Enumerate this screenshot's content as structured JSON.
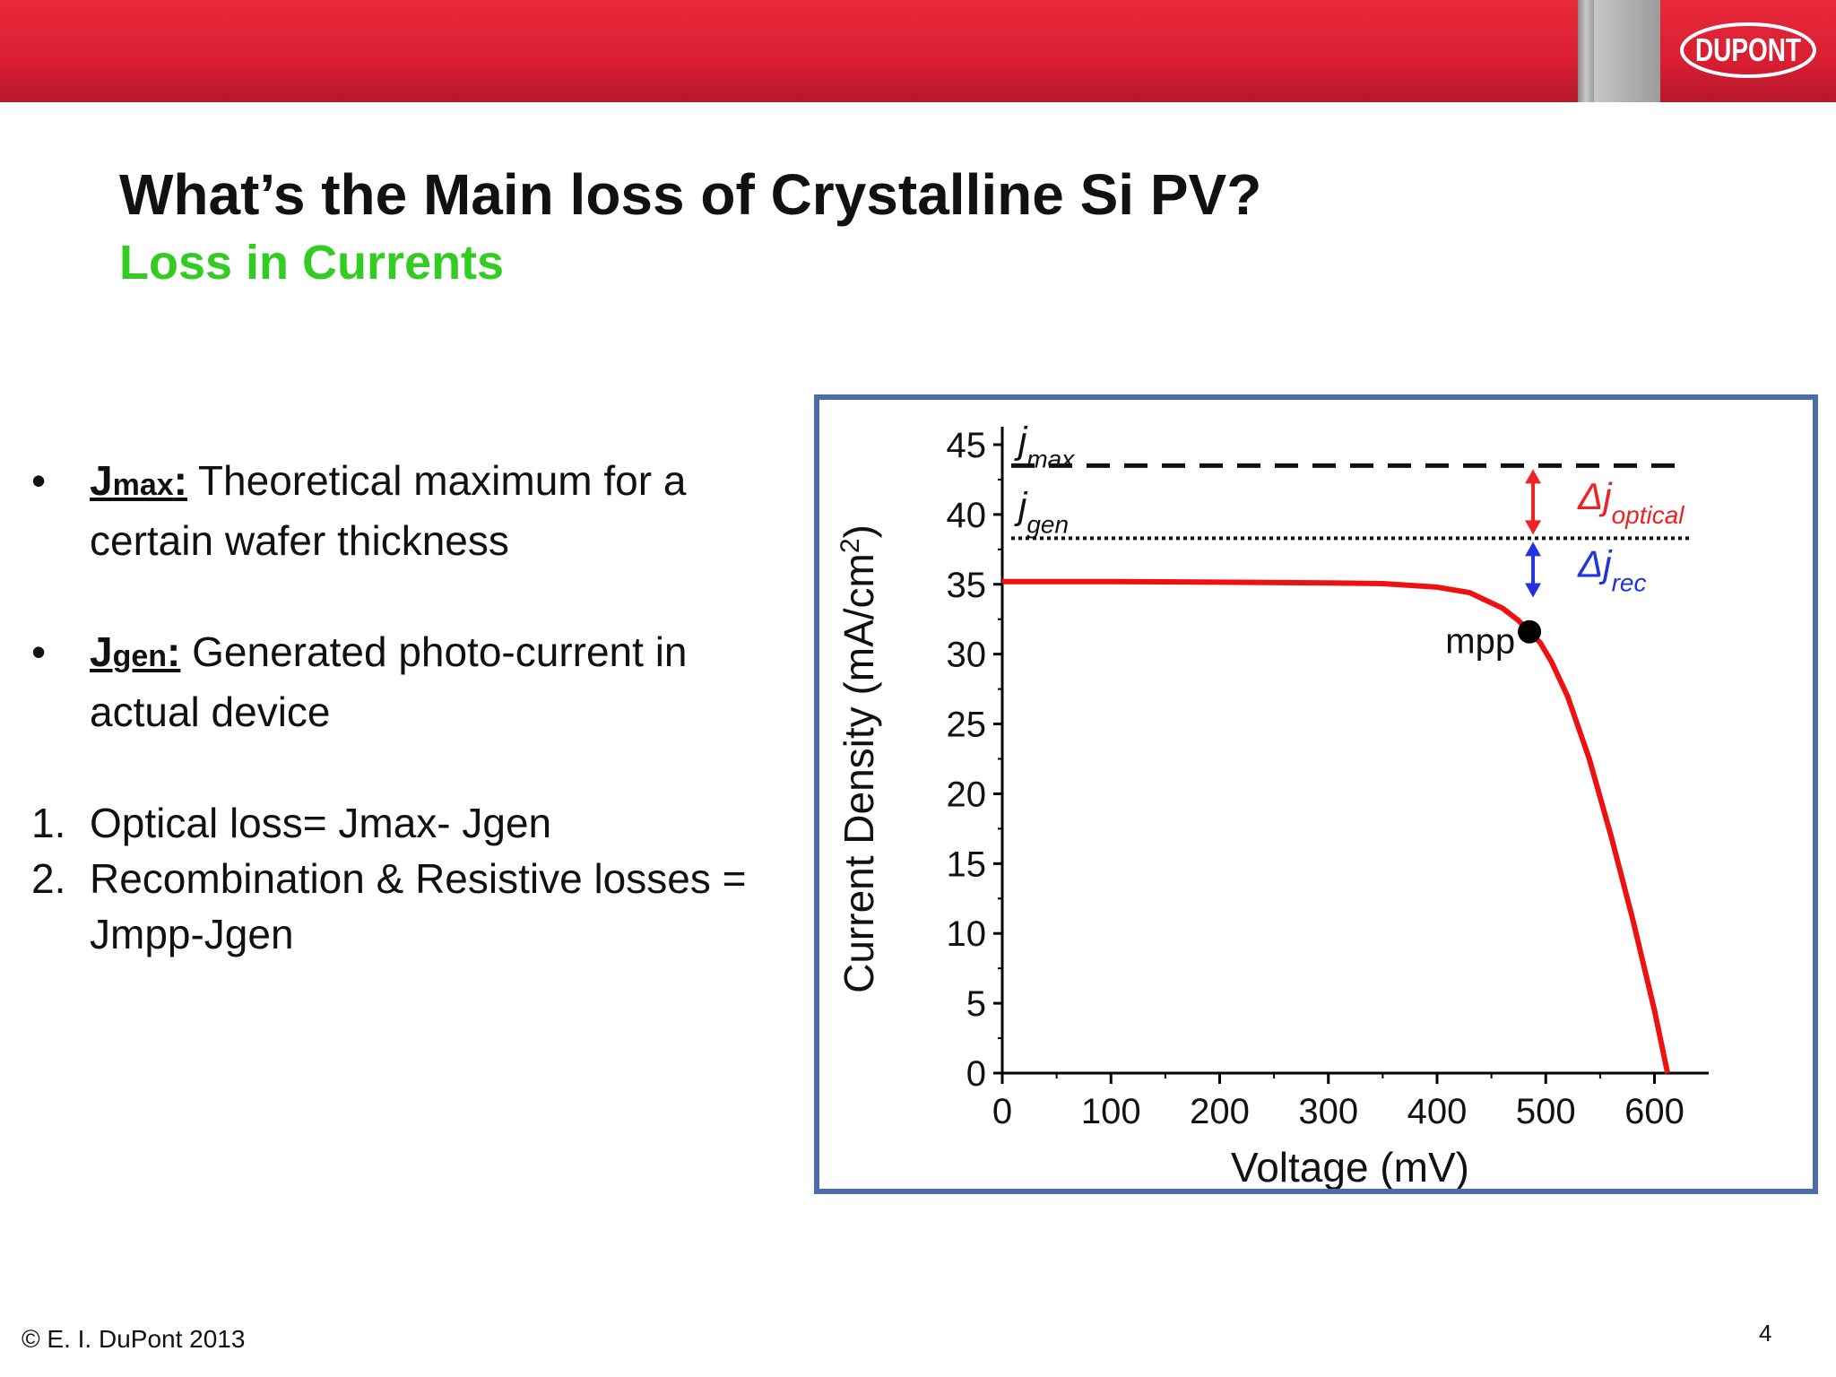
{
  "header": {
    "logo_text": "DUPONT",
    "colors": {
      "banner": "#d91e32",
      "logo_stroke": "#ffffff"
    }
  },
  "title": "What’s the Main loss of Crystalline Si PV?",
  "subtitle": "Loss in Currents",
  "bullets": [
    {
      "marker": "•",
      "term": "J",
      "term_sub": "max",
      "colon": ":",
      "text": " Theoretical maximum for a certain wafer thickness"
    },
    {
      "marker": "•",
      "term": "J",
      "term_sub": "gen",
      "colon": ":",
      "text": " Generated photo-current in actual device"
    }
  ],
  "numbered": [
    {
      "marker": "1.",
      "text": "Optical loss= Jmax- Jgen"
    },
    {
      "marker": "2.",
      "text": "Recombination & Resistive losses = Jmpp-Jgen"
    }
  ],
  "footer": {
    "copyright": "©  E. I. DuPont 2013",
    "page": "4"
  },
  "chart_data": {
    "type": "line",
    "xlabel": "Voltage (mV)",
    "ylabel": "Current Density (mA/cm",
    "ylabel_sup": "2",
    "ylabel_close": ")",
    "xlim": [
      0,
      640
    ],
    "ylim": [
      0,
      45
    ],
    "xticks": [
      0,
      100,
      200,
      300,
      400,
      500,
      600
    ],
    "yticks": [
      0,
      5,
      10,
      15,
      20,
      25,
      30,
      35,
      40,
      45
    ],
    "series": [
      {
        "color": "#ee1111",
        "x": [
          0,
          100,
          200,
          300,
          350,
          400,
          430,
          460,
          475,
          485,
          495,
          505,
          520,
          540,
          560,
          580,
          600,
          612
        ],
        "y": [
          35.2,
          35.2,
          35.15,
          35.1,
          35.05,
          34.8,
          34.4,
          33.3,
          32.4,
          31.6,
          30.8,
          29.5,
          27.0,
          22.5,
          17.0,
          11.0,
          4.5,
          0
        ]
      }
    ],
    "reference_lines": [
      {
        "label": "j",
        "label_sub": "max",
        "y": 43.5,
        "style": "dashed",
        "color": "#111111"
      },
      {
        "label": "j",
        "label_sub": "gen",
        "y": 38.3,
        "style": "dotted",
        "color": "#111111"
      }
    ],
    "mpp": {
      "label": "mpp",
      "x": 485,
      "y": 31.6,
      "color": "#000000"
    },
    "annotations": [
      {
        "label": "Δj",
        "label_sub": "optical",
        "x": 485,
        "y_from": 43.5,
        "y_to": 38.3,
        "color": "#ee2222"
      },
      {
        "label": "Δj",
        "label_sub": "rec",
        "x": 485,
        "y_from": 38.3,
        "y_to": 33.8,
        "color": "#2233dd"
      }
    ],
    "grid": false
  }
}
